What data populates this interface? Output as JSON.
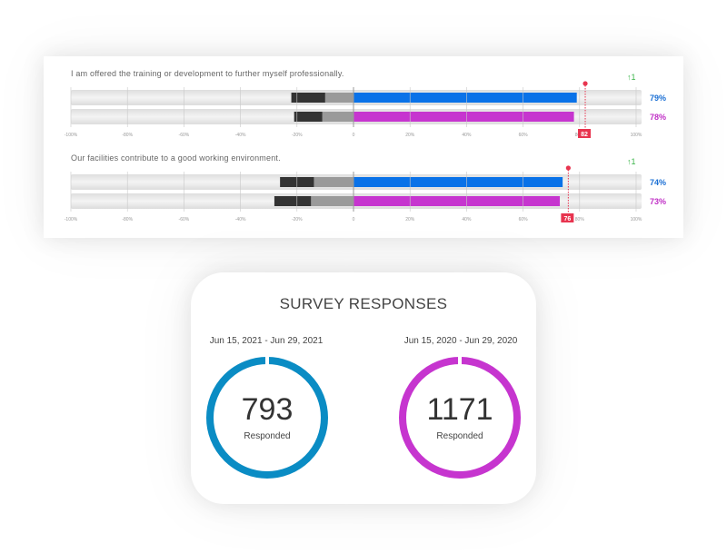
{
  "chart_data": {
    "type": "bar",
    "axis_ticks": [
      "-100%",
      "-80%",
      "-60%",
      "-40%",
      "-20%",
      "0",
      "20%",
      "40%",
      "60%",
      "80%",
      "100%"
    ],
    "xlim": [
      -100,
      100
    ],
    "questions": [
      {
        "title": "I am offered the training or development to further myself professionally.",
        "trend": "↑1",
        "benchmark": 82,
        "benchmark_label": "82",
        "bars": [
          {
            "positive": 79,
            "label": "79%",
            "neutral": 10,
            "negative": 12,
            "color": "#0a72e8",
            "label_color": "#1a6fd4"
          },
          {
            "positive": 78,
            "label": "78%",
            "neutral": 11,
            "negative": 10,
            "color": "#c635cf",
            "label_color": "#c02fc6"
          }
        ]
      },
      {
        "title": "Our facilities contribute to a good working environment.",
        "trend": "↑1",
        "benchmark": 76,
        "benchmark_label": "76",
        "bars": [
          {
            "positive": 74,
            "label": "74%",
            "neutral": 14,
            "negative": 12,
            "color": "#0a72e8",
            "label_color": "#1a6fd4"
          },
          {
            "positive": 73,
            "label": "73%",
            "neutral": 15,
            "negative": 13,
            "color": "#c635cf",
            "label_color": "#c02fc6"
          }
        ]
      }
    ]
  },
  "survey": {
    "title": "SURVEY RESPONSES",
    "periods": [
      {
        "range": "Jun 15, 2021 - Jun 29, 2021",
        "count": "793",
        "label": "Responded",
        "color": "#0a8cc4"
      },
      {
        "range": "Jun 15, 2020 - Jun 29, 2020",
        "count": "1171",
        "label": "Responded",
        "color": "#c635cf"
      }
    ]
  }
}
